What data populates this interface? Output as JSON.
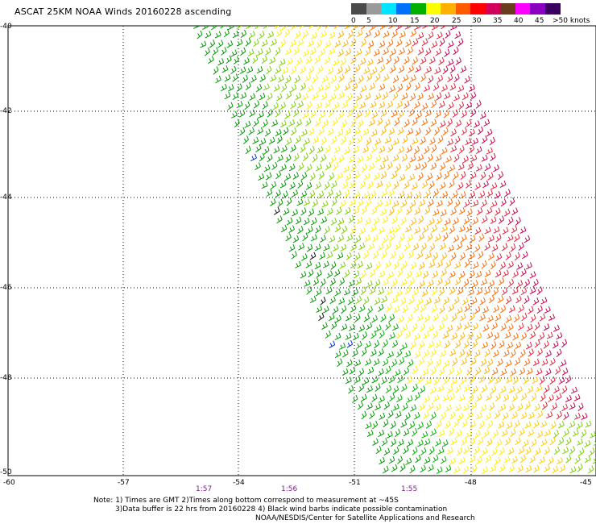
{
  "title": "ASCAT 25KM NOAA Winds 20160228 ascending",
  "legend": {
    "colors": [
      "#4a4a4a",
      "#9a9a9a",
      "#00e5ff",
      "#0070ff",
      "#00b000",
      "#ffff00",
      "#ffb000",
      "#ff5a00",
      "#ff0000",
      "#d1005a",
      "#6b3b1e",
      "#ff00ff",
      "#8a00c0",
      "#3a0060"
    ],
    "labels": [
      "0",
      "5",
      "10",
      "15",
      "20",
      "25",
      "30",
      "35",
      "40",
      "45",
      ">50 knots"
    ]
  },
  "axes": {
    "lat_labels": [
      "-40",
      "-42",
      "-44",
      "-46",
      "-48",
      "-50"
    ],
    "lon_labels": [
      "-60",
      "-57",
      "-54",
      "-51",
      "-48",
      "-45"
    ],
    "time_labels": [
      "1:57",
      "1:56",
      "1:55"
    ]
  },
  "notes": [
    "Note: 1) Times are GMT 2)Times along bottom correspond to measurement at ~45S",
    "3)Data buffer is 22 hrs from 20160228 4) Black wind barbs indicate possible contamination",
    "NOAA/NESDIS/Center for Satellite Applications and Research"
  ]
}
